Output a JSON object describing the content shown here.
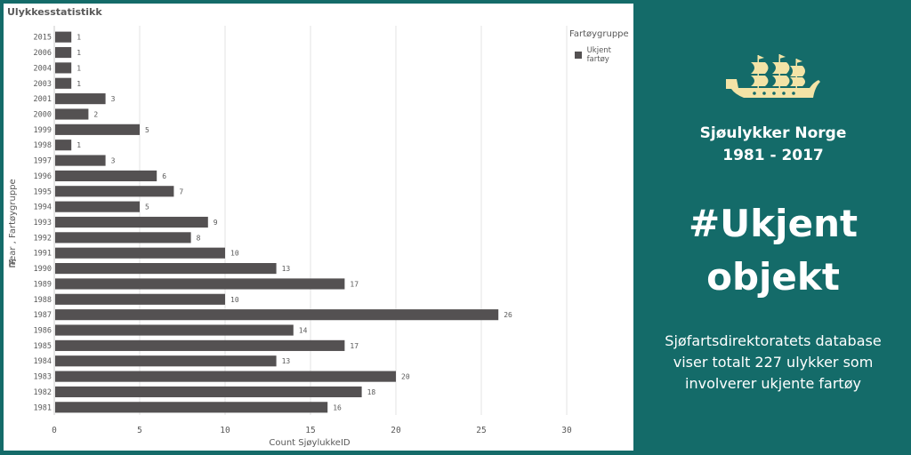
{
  "panel_title": "Ulykkesstatistikk",
  "legend": {
    "title": "Fartøygruppe",
    "item": "Ukjent fartøy"
  },
  "info": {
    "title": "Sjøulykker Norge",
    "years": "1981 - 2017",
    "hashtag_line1": "#Ukjent",
    "hashtag_line2": "objekt",
    "description": "Sjøfartsdirektoratets database viser totalt 227 ulykker som involverer ukjente fartøy",
    "ship_icon": "ship-icon"
  },
  "colors": {
    "background": "#146b69",
    "bar": "#545152",
    "ship": "#f3e3a6"
  },
  "chart_data": {
    "type": "bar",
    "orientation": "horizontal",
    "categories": [
      "2015",
      "2006",
      "2004",
      "2003",
      "2001",
      "2000",
      "1999",
      "1998",
      "1997",
      "1996",
      "1995",
      "1994",
      "1993",
      "1992",
      "1991",
      "1990",
      "1989",
      "1988",
      "1987",
      "1986",
      "1985",
      "1984",
      "1983",
      "1982",
      "1981"
    ],
    "series": [
      {
        "name": "Ukjent fartøy",
        "values": [
          1,
          1,
          1,
          1,
          3,
          2,
          5,
          1,
          3,
          6,
          7,
          5,
          9,
          8,
          10,
          13,
          17,
          10,
          26,
          14,
          17,
          13,
          20,
          18,
          16
        ]
      }
    ],
    "xlabel": "Count SjøylukkeID",
    "ylabel": "Year , Fartøygruppe",
    "xlim": [
      0,
      30
    ],
    "xticks": [
      0,
      5,
      10,
      15,
      20,
      25,
      30
    ],
    "grid": true,
    "legend_position": "top-right"
  }
}
